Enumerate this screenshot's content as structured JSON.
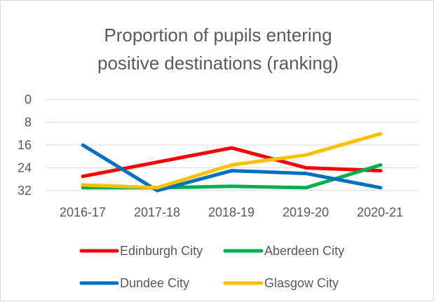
{
  "chart_data": {
    "type": "line",
    "title_lines": [
      "Proportion of pupils entering",
      "positive destinations (ranking)"
    ],
    "categories": [
      "2016-17",
      "2017-18",
      "2018-19",
      "2019-20",
      "2020-21"
    ],
    "y_axis": {
      "reversed": true,
      "ylim": [
        0,
        32
      ],
      "ticks": [
        "0",
        "8",
        "16",
        "24",
        "32"
      ],
      "tick_values": [
        0,
        8,
        16,
        24,
        32
      ]
    },
    "grid": true,
    "legend_position": "bottom",
    "series": [
      {
        "name": "Edinburgh City",
        "color": "#ff0000",
        "values": [
          27,
          22,
          17,
          24,
          25
        ]
      },
      {
        "name": "Aberdeen City",
        "color": "#00b050",
        "values": [
          31,
          31,
          30.5,
          31,
          23
        ]
      },
      {
        "name": "Dundee City",
        "color": "#0070c0",
        "values": [
          16,
          32,
          25,
          26,
          31
        ]
      },
      {
        "name": "Glasgow City",
        "color": "#ffc000",
        "values": [
          30,
          31,
          23,
          19.5,
          12
        ]
      }
    ]
  }
}
